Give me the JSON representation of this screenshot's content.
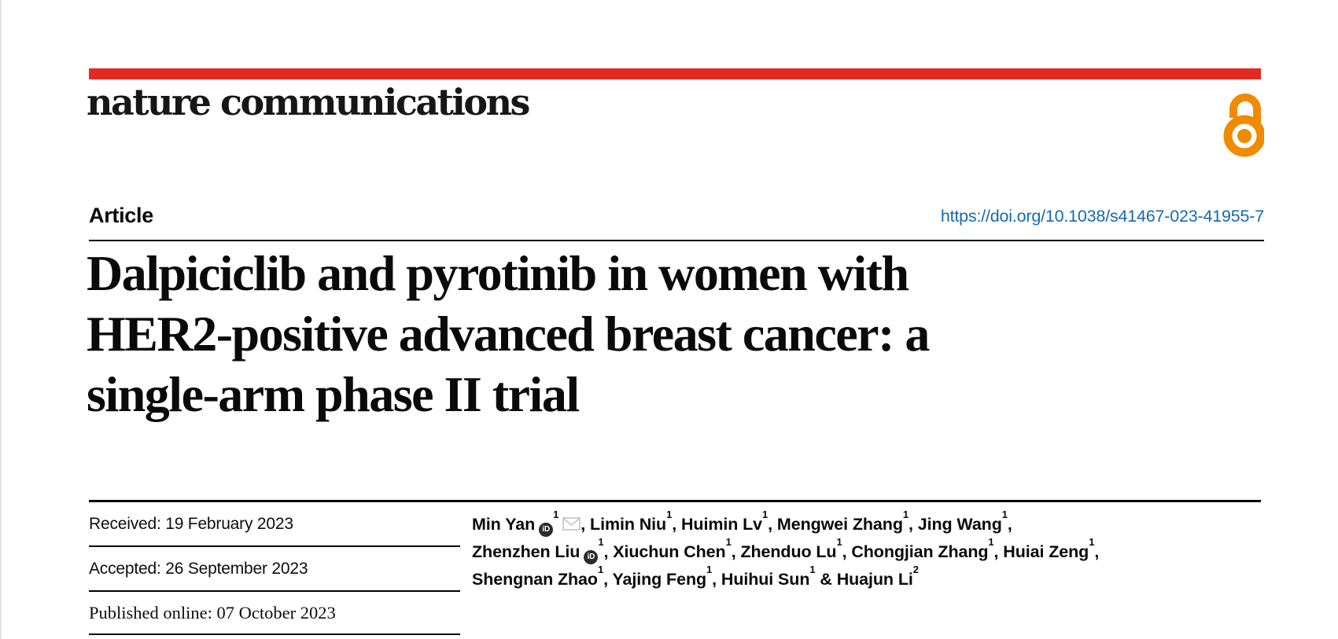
{
  "journal": {
    "name": "nature communications"
  },
  "brand": {
    "red_bar_color": "#e32b24",
    "open_access_orange": "#f08b00",
    "link_blue": "#156aad"
  },
  "icons": {
    "open_access": "open-access-padlock",
    "orcid": "orcid-id-badge",
    "email": "envelope"
  },
  "article": {
    "type_label": "Article",
    "doi_url": "https://doi.org/10.1038/s41467-023-41955-7",
    "title_lines": [
      "Dalpiciclib and pyrotinib in women with",
      "HER2-positive advanced breast cancer: a",
      "single-arm phase II trial"
    ]
  },
  "dates": [
    {
      "label": "Received:",
      "value": "19 February 2023"
    },
    {
      "label": "Accepted:",
      "value": "26 September 2023"
    },
    {
      "label": "Published online:",
      "value": "07 October 2023"
    }
  ],
  "authors": {
    "lines": [
      [
        {
          "name": "Min Yan",
          "orcid": true,
          "sup": "1",
          "email": true,
          "sep": ", "
        },
        {
          "name": "Limin Niu",
          "sup": "1",
          "sep": ", "
        },
        {
          "name": "Huimin Lv",
          "sup": "1",
          "sep": ", "
        },
        {
          "name": "Mengwei Zhang",
          "sup": "1",
          "sep": ", "
        },
        {
          "name": "Jing Wang",
          "sup": "1",
          "sep": ","
        }
      ],
      [
        {
          "name": "Zhenzhen Liu",
          "orcid": true,
          "sup": "1",
          "sep": ", "
        },
        {
          "name": "Xiuchun Chen",
          "sup": "1",
          "sep": ", "
        },
        {
          "name": "Zhenduo Lu",
          "sup": "1",
          "sep": ", "
        },
        {
          "name": "Chongjian Zhang",
          "sup": "1",
          "sep": ", "
        },
        {
          "name": "Huiai Zeng",
          "sup": "1",
          "sep": ","
        }
      ],
      [
        {
          "name": "Shengnan Zhao",
          "sup": "1",
          "sep": ", "
        },
        {
          "name": "Yajing Feng",
          "sup": "1",
          "sep": ", "
        },
        {
          "name": "Huihui Sun",
          "sup": "1",
          "sep": " & "
        },
        {
          "name": "Huajun Li",
          "sup": "2",
          "sep": ""
        }
      ]
    ]
  }
}
